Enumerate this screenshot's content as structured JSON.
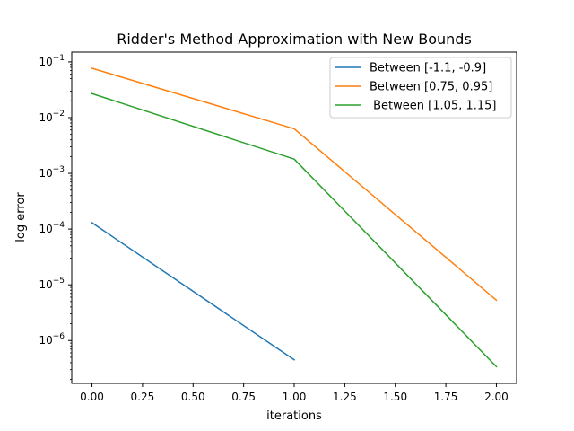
{
  "chart_data": {
    "type": "line",
    "title": "Ridder's Method Approximation with New Bounds",
    "xlabel": "iterations",
    "ylabel": "log error",
    "yscale": "log",
    "xlim": [
      -0.1,
      2.1
    ],
    "ylim": [
      1.7e-07,
      0.15
    ],
    "grid": false,
    "legend_position": "top-right",
    "x_ticks": [
      {
        "value": 0,
        "label": "0.00"
      },
      {
        "value": 0.25,
        "label": "0.25"
      },
      {
        "value": 0.5,
        "label": "0.50"
      },
      {
        "value": 0.75,
        "label": "0.75"
      },
      {
        "value": 1,
        "label": "1.00"
      },
      {
        "value": 1.25,
        "label": "1.25"
      },
      {
        "value": 1.5,
        "label": "1.50"
      },
      {
        "value": 1.75,
        "label": "1.75"
      },
      {
        "value": 2,
        "label": "2.00"
      }
    ],
    "y_ticks": [
      {
        "exp": -1,
        "base": "10",
        "sup": "−1"
      },
      {
        "exp": -2,
        "base": "10",
        "sup": "−2"
      },
      {
        "exp": -3,
        "base": "10",
        "sup": "−3"
      },
      {
        "exp": -4,
        "base": "10",
        "sup": "−4"
      },
      {
        "exp": -5,
        "base": "10",
        "sup": "−5"
      },
      {
        "exp": -6,
        "base": "10",
        "sup": "−6"
      }
    ],
    "series": [
      {
        "name": "Between [-1.1, -0.9]",
        "color": "#1f77b4",
        "x": [
          0,
          1
        ],
        "y": [
          0.00013,
          4.5e-07
        ]
      },
      {
        "name": "Between [0.75, 0.95]",
        "color": "#ff7f0e",
        "x": [
          0,
          1,
          2
        ],
        "y": [
          0.077,
          0.0063,
          5.3e-06
        ]
      },
      {
        "name": " Between [1.05, 1.15]",
        "color": "#2ca02c",
        "x": [
          0,
          1,
          2
        ],
        "y": [
          0.027,
          0.0018,
          3.4e-07
        ]
      }
    ]
  }
}
